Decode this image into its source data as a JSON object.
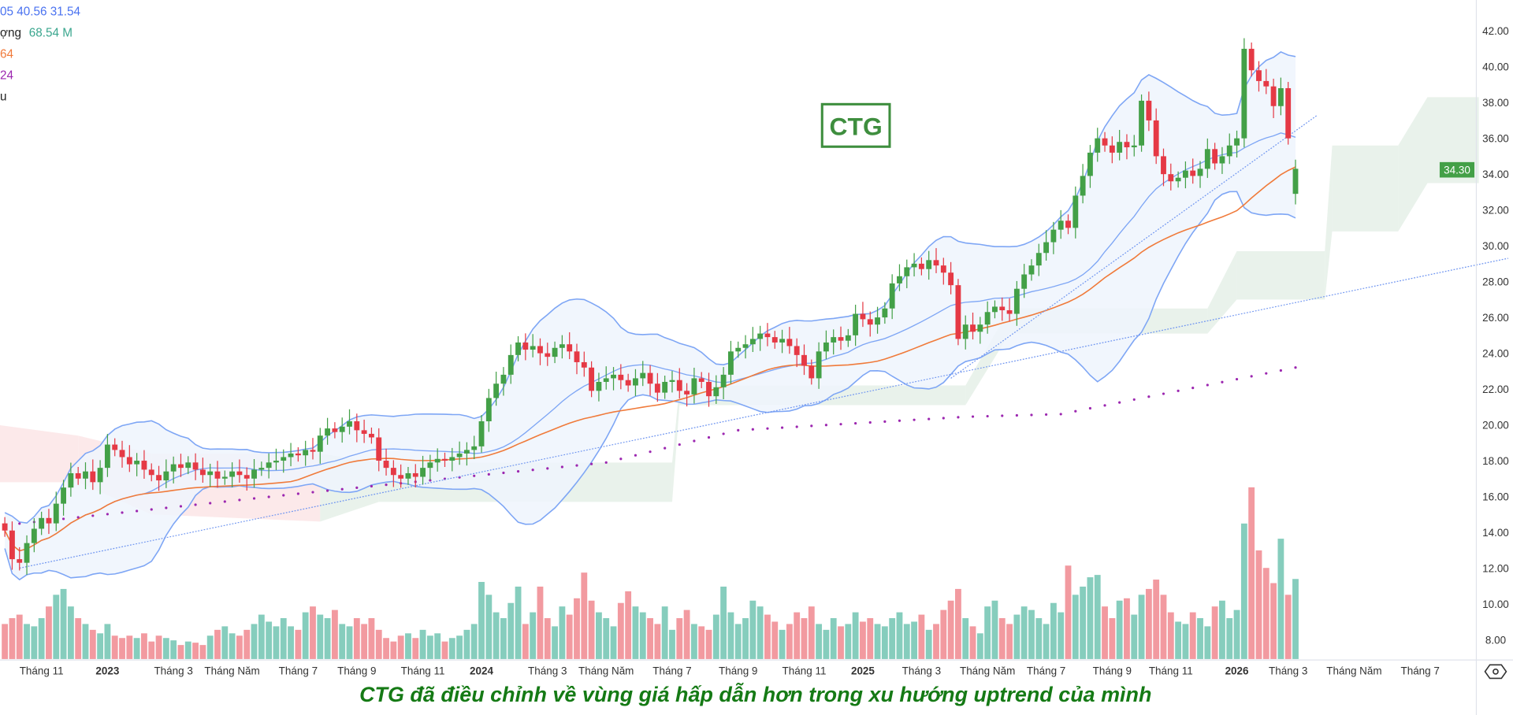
{
  "legend": {
    "bb_values": "05  40.56  31.54",
    "volume_label": "ợng",
    "volume_value": "68.54 M",
    "ma1_value": "64",
    "ma2_value": "24",
    "extra": "u"
  },
  "ticker_box": "CTG",
  "caption": "CTG đã điều chỉnh về vùng giá hấp dẫn hơn trong xu hướng uptrend của mình",
  "last_price_label": "34.30",
  "colors": {
    "up": "#43a047",
    "down": "#e53945",
    "vol_up": "#86cdbd",
    "vol_down": "#f29aa0",
    "bb": "#7ea6f5",
    "bb_fill": "#eef5fd",
    "ma": "#f07a3a",
    "ma_long": "#9c27b0",
    "trend": "#6f95f0",
    "cloud_up": "#e3efe6",
    "cloud_down": "#fbe3e5"
  },
  "chart_data": {
    "type": "candlestick",
    "title": "CTG",
    "interval": "weekly",
    "ylim": [
      8,
      42
    ],
    "y_ticks": [
      "42.00",
      "40.00",
      "38.00",
      "36.00",
      "34.00",
      "32.00",
      "30.00",
      "28.00",
      "26.00",
      "24.00",
      "22.00",
      "20.00",
      "18.00",
      "16.00",
      "14.00",
      "12.00",
      "10.00",
      "8.00"
    ],
    "x_ticks": [
      {
        "label": "Tháng 11",
        "i": 5
      },
      {
        "label": "2023",
        "i": 14
      },
      {
        "label": "Tháng 3",
        "i": 23
      },
      {
        "label": "Tháng Năm",
        "i": 31
      },
      {
        "label": "Tháng 7",
        "i": 40
      },
      {
        "label": "Tháng 9",
        "i": 48
      },
      {
        "label": "Tháng 11",
        "i": 57
      },
      {
        "label": "2024",
        "i": 65
      },
      {
        "label": "Tháng 3",
        "i": 74
      },
      {
        "label": "Tháng Năm",
        "i": 82
      },
      {
        "label": "Tháng 7",
        "i": 91
      },
      {
        "label": "Tháng 9",
        "i": 100
      },
      {
        "label": "Tháng 11",
        "i": 109
      },
      {
        "label": "2025",
        "i": 117
      },
      {
        "label": "Tháng 3",
        "i": 125
      },
      {
        "label": "Tháng Năm",
        "i": 134
      },
      {
        "label": "Tháng 7",
        "i": 142
      },
      {
        "label": "Tháng 9",
        "i": 151
      },
      {
        "label": "Tháng 11",
        "i": 159
      },
      {
        "label": "2026",
        "i": 168
      },
      {
        "label": "Tháng 3",
        "i": 175
      },
      {
        "label": "Tháng Năm",
        "i": 184
      },
      {
        "label": "Tháng 7",
        "i": 193
      }
    ],
    "close": [
      14.1,
      12.5,
      12.3,
      13.4,
      14.2,
      14.8,
      14.5,
      15.6,
      16.5,
      17.3,
      17.0,
      17.4,
      16.8,
      17.6,
      18.9,
      18.6,
      18.2,
      17.8,
      18.0,
      17.5,
      17.2,
      16.9,
      17.4,
      17.8,
      17.6,
      17.9,
      17.5,
      17.2,
      17.4,
      17.0,
      17.1,
      17.4,
      17.2,
      17.0,
      17.5,
      17.6,
      17.9,
      18.0,
      18.2,
      18.4,
      18.3,
      18.6,
      18.5,
      19.4,
      19.8,
      19.6,
      19.9,
      20.2,
      19.7,
      19.5,
      19.3,
      18.0,
      17.6,
      17.2,
      17.0,
      17.3,
      17.1,
      17.6,
      17.9,
      18.1,
      18.0,
      18.2,
      18.4,
      18.6,
      18.8,
      20.2,
      21.5,
      22.3,
      22.8,
      23.9,
      24.6,
      24.2,
      24.4,
      24.0,
      23.8,
      24.3,
      24.5,
      24.1,
      23.5,
      23.2,
      21.9,
      22.4,
      22.6,
      22.8,
      22.5,
      22.2,
      22.6,
      22.9,
      22.3,
      21.8,
      22.4,
      22.5,
      21.9,
      21.7,
      22.6,
      22.4,
      21.6,
      22.1,
      22.8,
      24.1,
      24.3,
      24.5,
      24.8,
      25.1,
      24.9,
      24.6,
      24.8,
      24.4,
      23.9,
      23.3,
      22.6,
      24.1,
      24.6,
      24.9,
      24.7,
      25.0,
      26.2,
      25.9,
      25.6,
      26.0,
      26.5,
      27.9,
      28.3,
      28.8,
      29.0,
      28.7,
      29.2,
      28.9,
      28.5,
      27.8,
      24.8,
      25.6,
      25.2,
      25.6,
      26.3,
      26.6,
      26.4,
      26.2,
      27.6,
      28.4,
      28.9,
      29.6,
      30.2,
      30.9,
      31.4,
      31.0,
      32.8,
      33.9,
      35.2,
      36.0,
      35.6,
      35.2,
      35.8,
      35.5,
      35.6,
      38.1,
      37.0,
      35.0,
      34.0,
      33.6,
      33.8,
      34.2,
      33.9,
      34.3,
      35.4,
      34.6,
      35.0,
      35.6,
      36.0,
      41.0,
      39.8,
      39.2,
      38.9,
      37.8,
      38.8,
      36.0,
      34.3
    ],
    "volume_millions": [
      30,
      35,
      38,
      30,
      28,
      35,
      45,
      55,
      60,
      45,
      35,
      30,
      25,
      22,
      30,
      20,
      18,
      20,
      18,
      22,
      15,
      20,
      18,
      16,
      12,
      15,
      14,
      12,
      20,
      25,
      28,
      22,
      20,
      25,
      30,
      38,
      32,
      28,
      35,
      28,
      25,
      40,
      45,
      38,
      35,
      42,
      30,
      28,
      35,
      30,
      35,
      25,
      18,
      15,
      20,
      22,
      18,
      25,
      20,
      22,
      15,
      18,
      20,
      25,
      30,
      66,
      55,
      40,
      35,
      48,
      62,
      30,
      40,
      62,
      35,
      28,
      45,
      38,
      52,
      74,
      50,
      40,
      35,
      28,
      48,
      58,
      45,
      40,
      35,
      30,
      45,
      25,
      35,
      42,
      30,
      28,
      25,
      38,
      62,
      40,
      30,
      35,
      50,
      45,
      38,
      32,
      25,
      30,
      40,
      35,
      45,
      30,
      25,
      35,
      28,
      30,
      40,
      32,
      35,
      30,
      28,
      35,
      40,
      30,
      32,
      38,
      25,
      30,
      42,
      50,
      60,
      35,
      28,
      22,
      45,
      50,
      35,
      30,
      38,
      45,
      42,
      35,
      30,
      48,
      40,
      80,
      55,
      62,
      70,
      72,
      45,
      35,
      50,
      52,
      38,
      55,
      60,
      68,
      55,
      40,
      32,
      30,
      40,
      35,
      28,
      45,
      50,
      35,
      42,
      116,
      147,
      93,
      78,
      65,
      103,
      55,
      68.54
    ],
    "ma_long": [
      {
        "i": 0,
        "v": 14.4
      },
      {
        "i": 41,
        "v": 16.2
      },
      {
        "i": 82,
        "v": 17.9
      },
      {
        "i": 100,
        "v": 19.7
      },
      {
        "i": 131,
        "v": 20.45
      },
      {
        "i": 144,
        "v": 20.6
      },
      {
        "i": 176,
        "v": 23.2
      }
    ],
    "cloud": [
      {
        "i": -1,
        "a": 20.0,
        "b": 16.8
      },
      {
        "i": 10,
        "a": 19.4,
        "b": 16.8
      },
      {
        "i": 20,
        "a": 18.4,
        "b": 15.0
      },
      {
        "i": 43,
        "a": 18.4,
        "b": 14.6
      },
      {
        "i": 51,
        "a": 17.9,
        "b": 15.7
      },
      {
        "i": 91,
        "a": 17.9,
        "b": 15.7
      },
      {
        "i": 92,
        "a": 22.2,
        "b": 21.1
      },
      {
        "i": 131,
        "a": 22.2,
        "b": 21.1
      },
      {
        "i": 137,
        "a": 26.5,
        "b": 25.1
      },
      {
        "i": 164,
        "a": 26.5,
        "b": 25.1
      },
      {
        "i": 168,
        "a": 29.7,
        "b": 27.0
      },
      {
        "i": 180,
        "a": 29.7,
        "b": 27.0
      },
      {
        "i": 181,
        "a": 35.6,
        "b": 30.8
      },
      {
        "i": 190,
        "a": 35.6,
        "b": 30.8
      },
      {
        "i": 194,
        "a": 38.3,
        "b": 33.5
      },
      {
        "i": 201,
        "a": 38.3,
        "b": 33.5
      }
    ],
    "trendlines": [
      {
        "from": {
          "i": 2,
          "v": 12.0
        },
        "to": {
          "i": 205,
          "v": 29.3
        }
      },
      {
        "from": {
          "i": 129,
          "v": 22.6
        },
        "to": {
          "i": 179,
          "v": 37.3
        }
      }
    ]
  }
}
